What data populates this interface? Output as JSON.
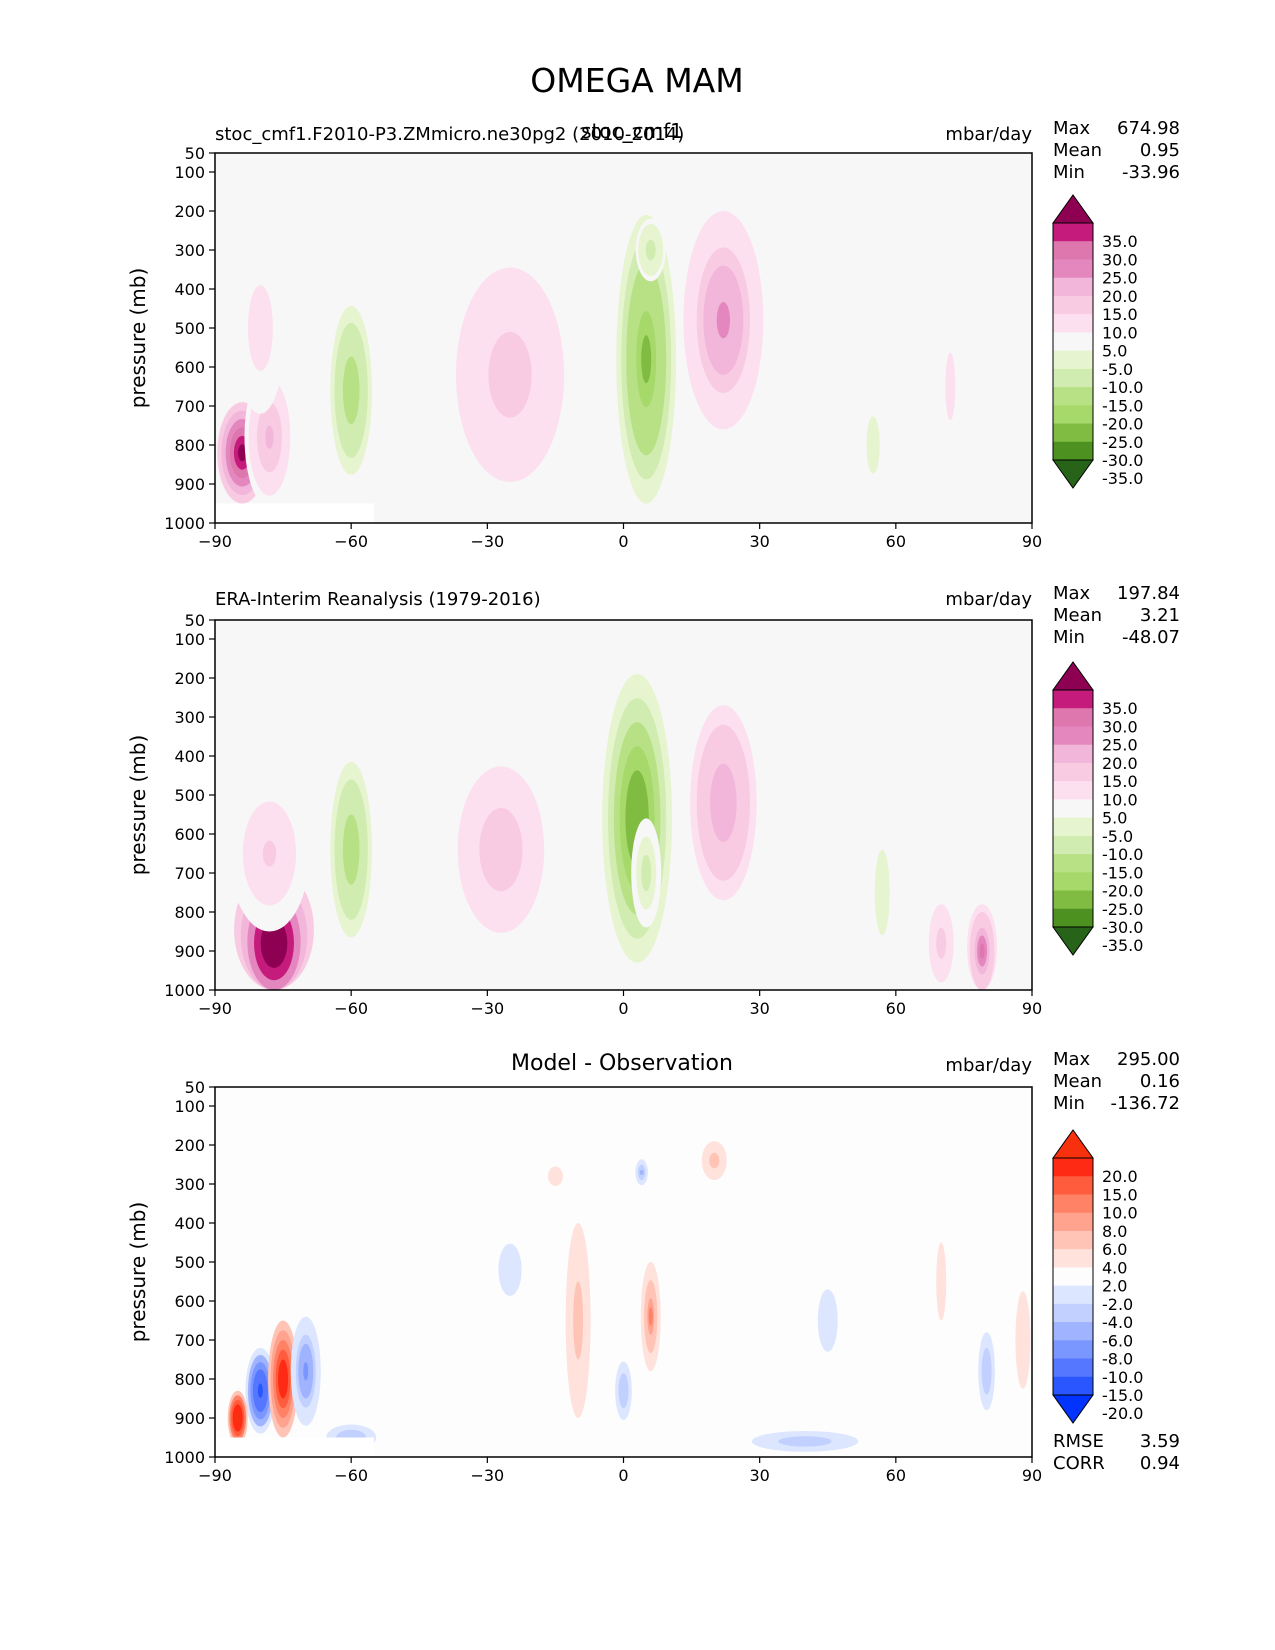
{
  "figure": {
    "title": "OMEGA MAM"
  },
  "colors": {
    "test_levels": [
      "#276419",
      "#4d9221",
      "#7fbc41",
      "#a6d96a",
      "#b8e186",
      "#d0ecb0",
      "#e6f5d0",
      "#f7f7f7",
      "#fde0ef",
      "#f9cbe3",
      "#f1b6da",
      "#e487be",
      "#de77ae",
      "#c51b7d",
      "#8e0152"
    ],
    "diff_levels": [
      "#0233ff",
      "#2a56ff",
      "#5577ff",
      "#7a97ff",
      "#9fb3ff",
      "#c2d0ff",
      "#dde6ff",
      "#fdfdfd",
      "#ffe2dc",
      "#ffc4b5",
      "#ffa38f",
      "#ff8166",
      "#ff5c3d",
      "#ff2a14",
      "#f7300d"
    ]
  },
  "chart_data": [
    {
      "type": "heatmap",
      "panel": "test",
      "title_left": "stoc_cmf1.F2010-P3.ZMmicro.ne30pg2 (2010-2014)",
      "title_center": "stoc_cmf1",
      "units": "mbar/day",
      "stats": {
        "Max": "674.98",
        "Mean": "0.95",
        "Min": "-33.96"
      },
      "xlabel": "",
      "ylabel": "pressure (mb)",
      "xlim": [
        -90,
        90
      ],
      "ylim": [
        1000,
        50
      ],
      "xticks": [
        "−90",
        "−60",
        "−30",
        "0",
        "30",
        "60",
        "90"
      ],
      "yticks": [
        "50",
        "100",
        "200",
        "300",
        "400",
        "500",
        "600",
        "700",
        "800",
        "900",
        "1000"
      ],
      "colorbar_labels": [
        "35.0",
        "30.0",
        "25.0",
        "20.0",
        "15.0",
        "10.0",
        "5.0",
        "-5.0",
        "-10.0",
        "-15.0",
        "-20.0",
        "-25.0",
        "-30.0",
        "-35.0"
      ],
      "features": [
        {
          "lat": 5,
          "p": 580,
          "wlat": 6,
          "wp": 370,
          "value": -28
        },
        {
          "lat": 6,
          "p": 300,
          "wlat": 3,
          "wp": 80,
          "value": -14
        },
        {
          "lat": -60,
          "p": 660,
          "wlat": 5,
          "wp": 260,
          "value": -20
        },
        {
          "lat": -25,
          "p": 620,
          "wlat": 13,
          "wp": 330,
          "value": 13
        },
        {
          "lat": 22,
          "p": 480,
          "wlat": 8,
          "wp": 280,
          "value": 22
        },
        {
          "lat": -84,
          "p": 820,
          "wlat": 5,
          "wp": 130,
          "value": 40
        },
        {
          "lat": -78,
          "p": 780,
          "wlat": 5,
          "wp": 180,
          "value": 16
        },
        {
          "lat": -80,
          "p": 500,
          "wlat": 5,
          "wp": 220,
          "value": 9
        },
        {
          "lat": 55,
          "p": 800,
          "wlat": 4,
          "wp": 220,
          "value": -7
        },
        {
          "lat": 72,
          "p": 650,
          "wlat": 3,
          "wp": 260,
          "value": 7
        }
      ]
    },
    {
      "type": "heatmap",
      "panel": "reference",
      "title_left": "ERA-Interim Reanalysis (1979-2016)",
      "units": "mbar/day",
      "stats": {
        "Max": "197.84",
        "Mean": "3.21",
        "Min": "-48.07"
      },
      "xlabel": "",
      "ylabel": "pressure (mb)",
      "xlim": [
        -90,
        90
      ],
      "ylim": [
        1000,
        50
      ],
      "xticks": [
        "−90",
        "−60",
        "−30",
        "0",
        "30",
        "60",
        "90"
      ],
      "yticks": [
        "50",
        "100",
        "200",
        "300",
        "400",
        "500",
        "600",
        "700",
        "800",
        "900",
        "1000"
      ],
      "colorbar_labels": [
        "35.0",
        "30.0",
        "25.0",
        "20.0",
        "15.0",
        "10.0",
        "5.0",
        "-5.0",
        "-10.0",
        "-15.0",
        "-20.0",
        "-25.0",
        "-30.0",
        "-35.0"
      ],
      "features": [
        {
          "lat": 3,
          "p": 560,
          "wlat": 7,
          "wp": 370,
          "value": -30
        },
        {
          "lat": 5,
          "p": 700,
          "wlat": 3,
          "wp": 140,
          "value": -12
        },
        {
          "lat": -60,
          "p": 640,
          "wlat": 5,
          "wp": 270,
          "value": -19
        },
        {
          "lat": -27,
          "p": 640,
          "wlat": 13,
          "wp": 320,
          "value": 12
        },
        {
          "lat": 22,
          "p": 520,
          "wlat": 8,
          "wp": 300,
          "value": 19
        },
        {
          "lat": -77,
          "p": 880,
          "wlat": 8,
          "wp": 190,
          "value": 45
        },
        {
          "lat": -78,
          "p": 650,
          "wlat": 8,
          "wp": 200,
          "value": 11
        },
        {
          "lat": 79,
          "p": 900,
          "wlat": 3,
          "wp": 120,
          "value": 26
        },
        {
          "lat": 70,
          "p": 880,
          "wlat": 3,
          "wp": 120,
          "value": 14
        },
        {
          "lat": 57,
          "p": 750,
          "wlat": 3,
          "wp": 220,
          "value": -8
        }
      ]
    },
    {
      "type": "heatmap",
      "panel": "difference",
      "title_center": "Model - Observation",
      "units": "mbar/day",
      "stats": {
        "Max": "295.00",
        "Mean": "0.16",
        "Min": "-136.72"
      },
      "metrics": {
        "RMSE": "3.59",
        "CORR": "0.94"
      },
      "xlabel": "",
      "ylabel": "pressure (mb)",
      "xlim": [
        -90,
        90
      ],
      "ylim": [
        1000,
        50
      ],
      "xticks": [
        "−90",
        "−60",
        "−30",
        "0",
        "30",
        "60",
        "90"
      ],
      "yticks": [
        "50",
        "100",
        "200",
        "300",
        "400",
        "500",
        "600",
        "700",
        "800",
        "900",
        "1000"
      ],
      "colorbar_labels": [
        "20.0",
        "15.0",
        "10.0",
        "8.0",
        "6.0",
        "4.0",
        "2.0",
        "-2.0",
        "-4.0",
        "-6.0",
        "-8.0",
        "-10.0",
        "-15.0",
        "-20.0"
      ],
      "features": [
        {
          "lat": -80,
          "p": 830,
          "wlat": 3,
          "wp": 110,
          "value": -16
        },
        {
          "lat": -75,
          "p": 800,
          "wlat": 3,
          "wp": 150,
          "value": 18
        },
        {
          "lat": -85,
          "p": 900,
          "wlat": 2,
          "wp": 70,
          "value": 22
        },
        {
          "lat": -70,
          "p": 780,
          "wlat": 3,
          "wp": 140,
          "value": -9
        },
        {
          "lat": -60,
          "p": 950,
          "wlat": 6,
          "wp": 40,
          "value": -6
        },
        {
          "lat": -25,
          "p": 520,
          "wlat": 7,
          "wp": 200,
          "value": -2.5
        },
        {
          "lat": -10,
          "p": 650,
          "wlat": 3,
          "wp": 300,
          "value": 5
        },
        {
          "lat": 6,
          "p": 640,
          "wlat": 2,
          "wp": 140,
          "value": 8
        },
        {
          "lat": 0,
          "p": 830,
          "wlat": 2,
          "wp": 90,
          "value": -6
        },
        {
          "lat": 4,
          "p": 270,
          "wlat": 1.5,
          "wp": 40,
          "value": -7
        },
        {
          "lat": 20,
          "p": 240,
          "wlat": 3,
          "wp": 60,
          "value": 5
        },
        {
          "lat": -15,
          "p": 280,
          "wlat": 3,
          "wp": 50,
          "value": 3
        },
        {
          "lat": 40,
          "p": 960,
          "wlat": 16,
          "wp": 40,
          "value": -5
        },
        {
          "lat": 80,
          "p": 780,
          "wlat": 2,
          "wp": 120,
          "value": -6
        },
        {
          "lat": 88,
          "p": 700,
          "wlat": 3,
          "wp": 250,
          "value": 3
        },
        {
          "lat": 45,
          "p": 650,
          "wlat": 3,
          "wp": 120,
          "value": -4
        },
        {
          "lat": 70,
          "p": 550,
          "wlat": 2,
          "wp": 200,
          "value": 3
        }
      ]
    }
  ]
}
